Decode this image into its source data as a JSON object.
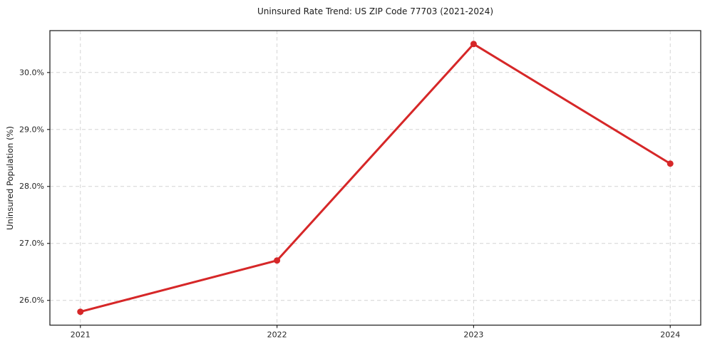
{
  "chart_data": {
    "type": "line",
    "title": "Uninsured Rate Trend: US ZIP Code 77703 (2021-2024)",
    "xlabel": "",
    "ylabel": "Uninsured Population (%)",
    "x": [
      2021,
      2022,
      2023,
      2024
    ],
    "values": [
      25.8,
      26.7,
      30.5,
      28.4
    ],
    "x_tick_labels": [
      "2021",
      "2022",
      "2023",
      "2024"
    ],
    "y_ticks": [
      26.0,
      27.0,
      28.0,
      29.0,
      30.0
    ],
    "y_tick_labels": [
      "26.0%",
      "27.0%",
      "28.0%",
      "29.0%",
      "30.0%"
    ],
    "xlim": [
      2020.845,
      2024.155
    ],
    "ylim": [
      25.565,
      30.735
    ],
    "grid": true,
    "grid_style": "dashed",
    "legend_position": "none",
    "line_color": "#d62728",
    "marker": "circle",
    "grid_color": "#d4d4d4",
    "axis_color": "#262626",
    "text_color": "#262626",
    "background_color": "#ffffff"
  }
}
